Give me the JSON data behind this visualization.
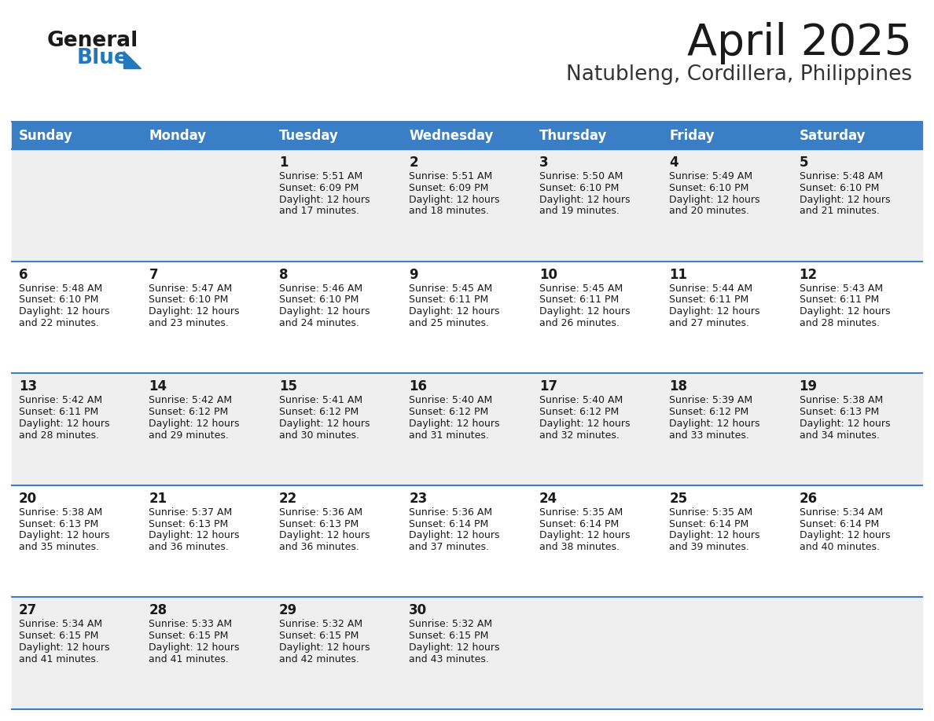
{
  "title": "April 2025",
  "subtitle": "Natubleng, Cordillera, Philippines",
  "days_of_week": [
    "Sunday",
    "Monday",
    "Tuesday",
    "Wednesday",
    "Thursday",
    "Friday",
    "Saturday"
  ],
  "header_bg": "#3A7EC6",
  "header_text_color": "#FFFFFF",
  "cell_bg_odd": "#EFEFEF",
  "cell_bg_even": "#FFFFFF",
  "cell_text_color": "#1A1A1A",
  "divider_color": "#3A7EC6",
  "title_color": "#1A1A1A",
  "subtitle_color": "#333333",
  "logo_general_color": "#1A1A1A",
  "logo_blue_color": "#2178BC",
  "calendar_data": [
    {
      "day": 1,
      "col": 2,
      "row": 0,
      "sunrise": "5:51 AM",
      "sunset": "6:09 PM",
      "daylight_hours": 12,
      "daylight_minutes": 17
    },
    {
      "day": 2,
      "col": 3,
      "row": 0,
      "sunrise": "5:51 AM",
      "sunset": "6:09 PM",
      "daylight_hours": 12,
      "daylight_minutes": 18
    },
    {
      "day": 3,
      "col": 4,
      "row": 0,
      "sunrise": "5:50 AM",
      "sunset": "6:10 PM",
      "daylight_hours": 12,
      "daylight_minutes": 19
    },
    {
      "day": 4,
      "col": 5,
      "row": 0,
      "sunrise": "5:49 AM",
      "sunset": "6:10 PM",
      "daylight_hours": 12,
      "daylight_minutes": 20
    },
    {
      "day": 5,
      "col": 6,
      "row": 0,
      "sunrise": "5:48 AM",
      "sunset": "6:10 PM",
      "daylight_hours": 12,
      "daylight_minutes": 21
    },
    {
      "day": 6,
      "col": 0,
      "row": 1,
      "sunrise": "5:48 AM",
      "sunset": "6:10 PM",
      "daylight_hours": 12,
      "daylight_minutes": 22
    },
    {
      "day": 7,
      "col": 1,
      "row": 1,
      "sunrise": "5:47 AM",
      "sunset": "6:10 PM",
      "daylight_hours": 12,
      "daylight_minutes": 23
    },
    {
      "day": 8,
      "col": 2,
      "row": 1,
      "sunrise": "5:46 AM",
      "sunset": "6:10 PM",
      "daylight_hours": 12,
      "daylight_minutes": 24
    },
    {
      "day": 9,
      "col": 3,
      "row": 1,
      "sunrise": "5:45 AM",
      "sunset": "6:11 PM",
      "daylight_hours": 12,
      "daylight_minutes": 25
    },
    {
      "day": 10,
      "col": 4,
      "row": 1,
      "sunrise": "5:45 AM",
      "sunset": "6:11 PM",
      "daylight_hours": 12,
      "daylight_minutes": 26
    },
    {
      "day": 11,
      "col": 5,
      "row": 1,
      "sunrise": "5:44 AM",
      "sunset": "6:11 PM",
      "daylight_hours": 12,
      "daylight_minutes": 27
    },
    {
      "day": 12,
      "col": 6,
      "row": 1,
      "sunrise": "5:43 AM",
      "sunset": "6:11 PM",
      "daylight_hours": 12,
      "daylight_minutes": 28
    },
    {
      "day": 13,
      "col": 0,
      "row": 2,
      "sunrise": "5:42 AM",
      "sunset": "6:11 PM",
      "daylight_hours": 12,
      "daylight_minutes": 28
    },
    {
      "day": 14,
      "col": 1,
      "row": 2,
      "sunrise": "5:42 AM",
      "sunset": "6:12 PM",
      "daylight_hours": 12,
      "daylight_minutes": 29
    },
    {
      "day": 15,
      "col": 2,
      "row": 2,
      "sunrise": "5:41 AM",
      "sunset": "6:12 PM",
      "daylight_hours": 12,
      "daylight_minutes": 30
    },
    {
      "day": 16,
      "col": 3,
      "row": 2,
      "sunrise": "5:40 AM",
      "sunset": "6:12 PM",
      "daylight_hours": 12,
      "daylight_minutes": 31
    },
    {
      "day": 17,
      "col": 4,
      "row": 2,
      "sunrise": "5:40 AM",
      "sunset": "6:12 PM",
      "daylight_hours": 12,
      "daylight_minutes": 32
    },
    {
      "day": 18,
      "col": 5,
      "row": 2,
      "sunrise": "5:39 AM",
      "sunset": "6:12 PM",
      "daylight_hours": 12,
      "daylight_minutes": 33
    },
    {
      "day": 19,
      "col": 6,
      "row": 2,
      "sunrise": "5:38 AM",
      "sunset": "6:13 PM",
      "daylight_hours": 12,
      "daylight_minutes": 34
    },
    {
      "day": 20,
      "col": 0,
      "row": 3,
      "sunrise": "5:38 AM",
      "sunset": "6:13 PM",
      "daylight_hours": 12,
      "daylight_minutes": 35
    },
    {
      "day": 21,
      "col": 1,
      "row": 3,
      "sunrise": "5:37 AM",
      "sunset": "6:13 PM",
      "daylight_hours": 12,
      "daylight_minutes": 36
    },
    {
      "day": 22,
      "col": 2,
      "row": 3,
      "sunrise": "5:36 AM",
      "sunset": "6:13 PM",
      "daylight_hours": 12,
      "daylight_minutes": 36
    },
    {
      "day": 23,
      "col": 3,
      "row": 3,
      "sunrise": "5:36 AM",
      "sunset": "6:14 PM",
      "daylight_hours": 12,
      "daylight_minutes": 37
    },
    {
      "day": 24,
      "col": 4,
      "row": 3,
      "sunrise": "5:35 AM",
      "sunset": "6:14 PM",
      "daylight_hours": 12,
      "daylight_minutes": 38
    },
    {
      "day": 25,
      "col": 5,
      "row": 3,
      "sunrise": "5:35 AM",
      "sunset": "6:14 PM",
      "daylight_hours": 12,
      "daylight_minutes": 39
    },
    {
      "day": 26,
      "col": 6,
      "row": 3,
      "sunrise": "5:34 AM",
      "sunset": "6:14 PM",
      "daylight_hours": 12,
      "daylight_minutes": 40
    },
    {
      "day": 27,
      "col": 0,
      "row": 4,
      "sunrise": "5:34 AM",
      "sunset": "6:15 PM",
      "daylight_hours": 12,
      "daylight_minutes": 41
    },
    {
      "day": 28,
      "col": 1,
      "row": 4,
      "sunrise": "5:33 AM",
      "sunset": "6:15 PM",
      "daylight_hours": 12,
      "daylight_minutes": 41
    },
    {
      "day": 29,
      "col": 2,
      "row": 4,
      "sunrise": "5:32 AM",
      "sunset": "6:15 PM",
      "daylight_hours": 12,
      "daylight_minutes": 42
    },
    {
      "day": 30,
      "col": 3,
      "row": 4,
      "sunrise": "5:32 AM",
      "sunset": "6:15 PM",
      "daylight_hours": 12,
      "daylight_minutes": 43
    }
  ],
  "fig_width": 11.88,
  "fig_height": 9.18,
  "dpi": 100
}
